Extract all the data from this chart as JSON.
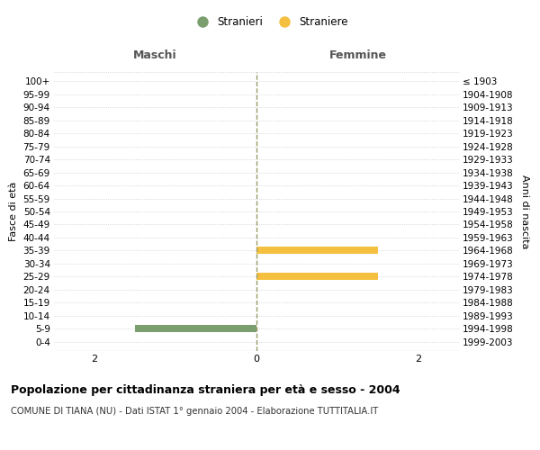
{
  "age_groups": [
    "0-4",
    "5-9",
    "10-14",
    "15-19",
    "20-24",
    "25-29",
    "30-34",
    "35-39",
    "40-44",
    "45-49",
    "50-54",
    "55-59",
    "60-64",
    "65-69",
    "70-74",
    "75-79",
    "80-84",
    "85-89",
    "90-94",
    "95-99",
    "100+"
  ],
  "birth_years": [
    "1999-2003",
    "1994-1998",
    "1989-1993",
    "1984-1988",
    "1979-1983",
    "1974-1978",
    "1969-1973",
    "1964-1968",
    "1959-1963",
    "1954-1958",
    "1949-1953",
    "1944-1948",
    "1939-1943",
    "1934-1938",
    "1929-1933",
    "1924-1928",
    "1919-1923",
    "1914-1918",
    "1909-1913",
    "1904-1908",
    "≤ 1903"
  ],
  "males": [
    0,
    -1.5,
    0,
    0,
    0,
    0,
    0,
    0,
    0,
    0,
    0,
    0,
    0,
    0,
    0,
    0,
    0,
    0,
    0,
    0,
    0
  ],
  "females": [
    0,
    0,
    0,
    0,
    0,
    1.5,
    0,
    1.5,
    0,
    0,
    0,
    0,
    0,
    0,
    0,
    0,
    0,
    0,
    0,
    0,
    0
  ],
  "male_color": "#7b9e6f",
  "female_color": "#f5c040",
  "xlim": [
    -2.5,
    2.5
  ],
  "xticks": [
    -2,
    0,
    2
  ],
  "title": "Popolazione per cittadinanza straniera per età e sesso - 2004",
  "subtitle": "COMUNE DI TIANA (NU) - Dati ISTAT 1° gennaio 2004 - Elaborazione TUTTITALIA.IT",
  "legend_male": "Stranieri",
  "legend_female": "Straniere",
  "ylabel_left": "Fasce di età",
  "ylabel_right": "Anni di nascita",
  "label_maschi": "Maschi",
  "label_femmine": "Femmine",
  "background_color": "#ffffff",
  "grid_color": "#cccccc",
  "center_line_color": "#999966",
  "bar_height": 0.55
}
